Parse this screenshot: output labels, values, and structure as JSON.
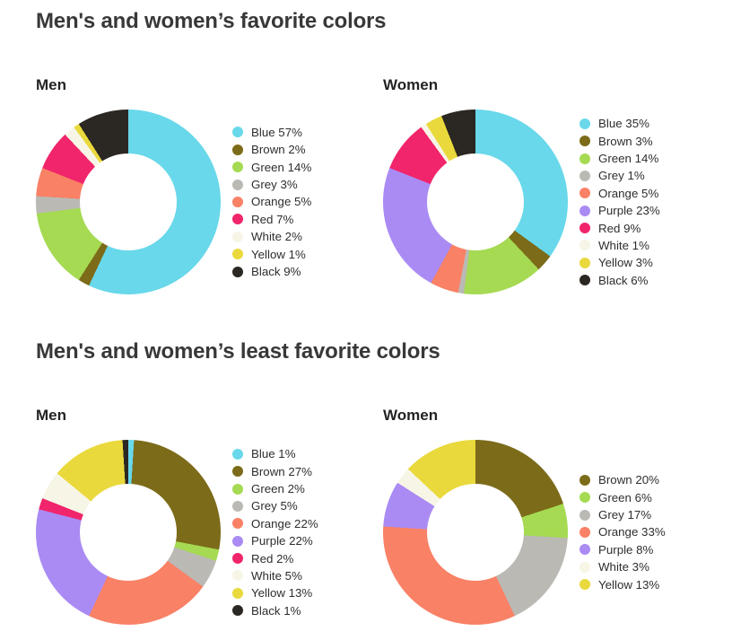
{
  "palette": {
    "Blue": "#68d8ea",
    "Brown": "#7c6b19",
    "Green": "#a5da52",
    "Grey": "#bab9b4",
    "Orange": "#f98166",
    "Purple": "#aa8bf4",
    "Red": "#f1256b",
    "White": "#f7f5e6",
    "Yellow": "#e9d93c",
    "Black": "#2b2722"
  },
  "sections": [
    {
      "title": "Men's and women’s favorite colors"
    },
    {
      "title": "Men's and women’s least favorite colors"
    }
  ],
  "chart_data": [
    {
      "type": "donut",
      "section_title": "Men's and women’s favorite colors",
      "subtitle": "Men",
      "unit": "%",
      "start_angle_deg": 0,
      "direction": "clockwise",
      "hole_ratio": 0.52,
      "legend_position": "right",
      "categories": [
        "Blue",
        "Brown",
        "Green",
        "Grey",
        "Orange",
        "Red",
        "White",
        "Yellow",
        "Black"
      ],
      "values": [
        57,
        2,
        14,
        3,
        5,
        7,
        2,
        1,
        9
      ]
    },
    {
      "type": "donut",
      "section_title": "Men's and women’s favorite colors",
      "subtitle": "Women",
      "unit": "%",
      "start_angle_deg": 0,
      "direction": "clockwise",
      "hole_ratio": 0.52,
      "legend_position": "right",
      "categories": [
        "Blue",
        "Brown",
        "Green",
        "Grey",
        "Orange",
        "Purple",
        "Red",
        "White",
        "Yellow",
        "Black"
      ],
      "values": [
        35,
        3,
        14,
        1,
        5,
        23,
        9,
        1,
        3,
        6
      ]
    },
    {
      "type": "donut",
      "section_title": "Men's and women’s least favorite colors",
      "subtitle": "Men",
      "unit": "%",
      "start_angle_deg": 0,
      "direction": "clockwise",
      "hole_ratio": 0.52,
      "legend_position": "right",
      "categories": [
        "Blue",
        "Brown",
        "Green",
        "Grey",
        "Orange",
        "Purple",
        "Red",
        "White",
        "Yellow",
        "Black"
      ],
      "values": [
        1,
        27,
        2,
        5,
        22,
        22,
        2,
        5,
        13,
        1
      ]
    },
    {
      "type": "donut",
      "section_title": "Men's and women’s least favorite colors",
      "subtitle": "Women",
      "unit": "%",
      "start_angle_deg": 0,
      "direction": "clockwise",
      "hole_ratio": 0.52,
      "legend_position": "right",
      "categories": [
        "Brown",
        "Green",
        "Grey",
        "Orange",
        "Purple",
        "White",
        "Yellow"
      ],
      "values": [
        20,
        6,
        17,
        33,
        8,
        3,
        13
      ]
    }
  ]
}
